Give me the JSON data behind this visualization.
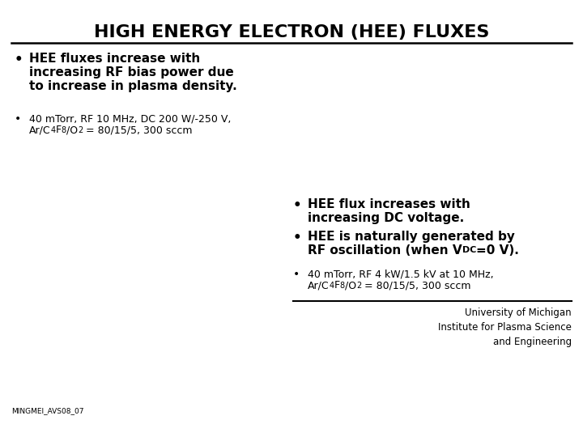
{
  "title": "HIGH ENERGY ELECTRON (HEE) FLUXES",
  "background_color": "#ffffff",
  "text_color": "#000000",
  "title_fontsize": 16,
  "bullet1_line1": "HEE fluxes increase with",
  "bullet1_line2": "increasing RF bias power due",
  "bullet1_line3": "to increase in plasma density.",
  "bullet2_line1": "40 mTorr, RF 10 MHz, DC 200 W/-250 V,",
  "bullet2_line2a": "Ar/C",
  "bullet2_line2b": "4",
  "bullet2_line2c": "F",
  "bullet2_line2d": "8",
  "bullet2_line2e": "/O",
  "bullet2_line2f": "2",
  "bullet2_line2g": " = 80/15/5, 300 sccm",
  "bullet3_line1": "HEE flux increases with",
  "bullet3_line2": "increasing DC voltage.",
  "bullet4_line1": "HEE is naturally generated by",
  "bullet4_line2a": "RF oscillation (when V",
  "bullet4_line2b": "DC",
  "bullet4_line2c": "=0 V).",
  "bullet5_line1": "40 mTorr, RF 4 kW/1.5 kV at 10 MHz,",
  "bullet5_line2a": "Ar/C",
  "bullet5_line2b": "4",
  "bullet5_line2c": "F",
  "bullet5_line2d": "8",
  "bullet5_line2e": "/O",
  "bullet5_line2f": "2",
  "bullet5_line2g": " = 80/15/5, 300 sccm",
  "footer_left": "MINGMEI_AVS08_07",
  "footer_right_line1": "University of Michigan",
  "footer_right_line2": "Institute for Plasma Science",
  "footer_right_line3": "and Engineering",
  "bold_fontsize": 11,
  "small_fontsize": 9
}
